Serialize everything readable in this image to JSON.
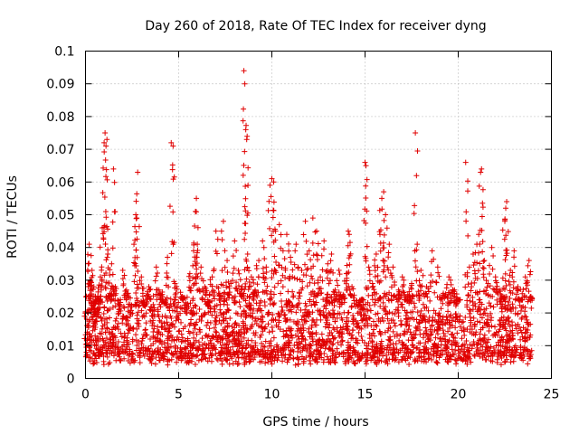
{
  "chart_data": {
    "type": "scatter",
    "title": "Day 260 of 2018, Rate Of TEC Index for receiver dyng",
    "xlabel": "GPS time / hours",
    "ylabel": "ROTI / TECUs",
    "xlim": [
      0,
      25
    ],
    "ylim": [
      0,
      0.1
    ],
    "xticks": [
      0,
      5,
      10,
      15,
      20,
      25
    ],
    "yticks": [
      0,
      0.01,
      0.02,
      0.03,
      0.04,
      0.05,
      0.06,
      0.07,
      0.08,
      0.09,
      0.1
    ],
    "xtick_labels": [
      "0",
      "5",
      "10",
      "15",
      "20",
      "25"
    ],
    "ytick_labels": [
      "0",
      "0.01",
      "0.02",
      "0.03",
      "0.04",
      "0.05",
      "0.06",
      "0.07",
      "0.08",
      "0.09",
      "0.1"
    ],
    "grid": true,
    "marker": "+",
    "color": "#e00000",
    "series": [
      {
        "name": "ROTI",
        "points": [
          [
            0.05,
            0.008
          ],
          [
            0.1,
            0.012
          ],
          [
            0.15,
            0.035
          ],
          [
            0.2,
            0.041
          ],
          [
            0.25,
            0.03
          ],
          [
            0.3,
            0.021
          ],
          [
            0.35,
            0.033
          ],
          [
            0.4,
            0.018
          ],
          [
            0.45,
            0.028
          ],
          [
            0.5,
            0.015
          ],
          [
            0.6,
            0.024
          ],
          [
            0.7,
            0.019
          ],
          [
            0.8,
            0.031
          ],
          [
            0.9,
            0.046
          ],
          [
            1.0,
            0.072
          ],
          [
            1.05,
            0.075
          ],
          [
            1.1,
            0.071
          ],
          [
            1.15,
            0.073
          ],
          [
            1.2,
            0.038
          ],
          [
            1.3,
            0.026
          ],
          [
            1.4,
            0.035
          ],
          [
            1.5,
            0.064
          ],
          [
            1.6,
            0.028
          ],
          [
            1.8,
            0.021
          ],
          [
            2.0,
            0.033
          ],
          [
            2.2,
            0.027
          ],
          [
            2.4,
            0.019
          ],
          [
            2.6,
            0.041
          ],
          [
            2.7,
            0.05
          ],
          [
            2.75,
            0.049
          ],
          [
            2.8,
            0.063
          ],
          [
            3.0,
            0.031
          ],
          [
            3.2,
            0.022
          ],
          [
            3.4,
            0.028
          ],
          [
            3.6,
            0.017
          ],
          [
            3.8,
            0.034
          ],
          [
            4.0,
            0.026
          ],
          [
            4.2,
            0.023
          ],
          [
            4.4,
            0.037
          ],
          [
            4.6,
            0.072
          ],
          [
            4.7,
            0.071
          ],
          [
            4.8,
            0.029
          ],
          [
            5.0,
            0.018
          ],
          [
            5.2,
            0.025
          ],
          [
            5.4,
            0.02
          ],
          [
            5.6,
            0.032
          ],
          [
            5.8,
            0.039
          ],
          [
            5.9,
            0.051
          ],
          [
            5.95,
            0.055
          ],
          [
            6.0,
            0.041
          ],
          [
            6.2,
            0.034
          ],
          [
            6.4,
            0.028
          ],
          [
            6.6,
            0.022
          ],
          [
            6.8,
            0.031
          ],
          [
            7.0,
            0.045
          ],
          [
            7.2,
            0.026
          ],
          [
            7.4,
            0.048
          ],
          [
            7.6,
            0.036
          ],
          [
            7.8,
            0.029
          ],
          [
            8.0,
            0.042
          ],
          [
            8.2,
            0.033
          ],
          [
            8.4,
            0.028
          ],
          [
            8.5,
            0.094
          ],
          [
            8.55,
            0.09
          ],
          [
            8.6,
            0.076
          ],
          [
            8.65,
            0.073
          ],
          [
            8.7,
            0.038
          ],
          [
            8.9,
            0.031
          ],
          [
            9.1,
            0.027
          ],
          [
            9.3,
            0.036
          ],
          [
            9.5,
            0.042
          ],
          [
            9.7,
            0.034
          ],
          [
            9.9,
            0.059
          ],
          [
            10.0,
            0.061
          ],
          [
            10.1,
            0.06
          ],
          [
            10.2,
            0.045
          ],
          [
            10.4,
            0.047
          ],
          [
            10.6,
            0.039
          ],
          [
            10.8,
            0.044
          ],
          [
            11.0,
            0.037
          ],
          [
            11.3,
            0.041
          ],
          [
            11.6,
            0.033
          ],
          [
            11.8,
            0.048
          ],
          [
            12.0,
            0.039
          ],
          [
            12.2,
            0.049
          ],
          [
            12.4,
            0.045
          ],
          [
            12.6,
            0.031
          ],
          [
            12.8,
            0.042
          ],
          [
            13.0,
            0.035
          ],
          [
            13.2,
            0.038
          ],
          [
            13.4,
            0.027
          ],
          [
            13.6,
            0.033
          ],
          [
            13.8,
            0.025
          ],
          [
            14.0,
            0.032
          ],
          [
            14.1,
            0.045
          ],
          [
            14.15,
            0.044
          ],
          [
            14.3,
            0.028
          ],
          [
            14.6,
            0.022
          ],
          [
            14.8,
            0.024
          ],
          [
            15.0,
            0.066
          ],
          [
            15.05,
            0.065
          ],
          [
            15.2,
            0.034
          ],
          [
            15.4,
            0.029
          ],
          [
            15.6,
            0.038
          ],
          [
            15.8,
            0.044
          ],
          [
            15.9,
            0.055
          ],
          [
            16.0,
            0.057
          ],
          [
            16.1,
            0.05
          ],
          [
            16.3,
            0.041
          ],
          [
            16.5,
            0.034
          ],
          [
            16.8,
            0.027
          ],
          [
            17.0,
            0.031
          ],
          [
            17.2,
            0.024
          ],
          [
            17.5,
            0.029
          ],
          [
            17.7,
            0.075
          ],
          [
            17.8,
            0.041
          ],
          [
            18.0,
            0.033
          ],
          [
            18.3,
            0.028
          ],
          [
            18.6,
            0.039
          ],
          [
            18.9,
            0.034
          ],
          [
            19.2,
            0.026
          ],
          [
            19.5,
            0.031
          ],
          [
            19.8,
            0.027
          ],
          [
            20.1,
            0.024
          ],
          [
            20.4,
            0.066
          ],
          [
            20.6,
            0.034
          ],
          [
            20.8,
            0.038
          ],
          [
            21.0,
            0.041
          ],
          [
            21.1,
            0.044
          ],
          [
            21.2,
            0.063
          ],
          [
            21.25,
            0.064
          ],
          [
            21.4,
            0.036
          ],
          [
            21.6,
            0.029
          ],
          [
            21.8,
            0.04
          ],
          [
            22.0,
            0.031
          ],
          [
            22.2,
            0.027
          ],
          [
            22.4,
            0.025
          ],
          [
            22.5,
            0.048
          ],
          [
            22.55,
            0.052
          ],
          [
            22.6,
            0.054
          ],
          [
            22.8,
            0.033
          ],
          [
            23.0,
            0.039
          ],
          [
            23.2,
            0.028
          ],
          [
            23.4,
            0.024
          ],
          [
            23.6,
            0.031
          ],
          [
            23.8,
            0.036
          ],
          [
            23.9,
            0.025
          ]
        ],
        "baseline_band": [
          0.004,
          0.024
        ],
        "band_hours": [
          0,
          23.95
        ]
      }
    ]
  }
}
